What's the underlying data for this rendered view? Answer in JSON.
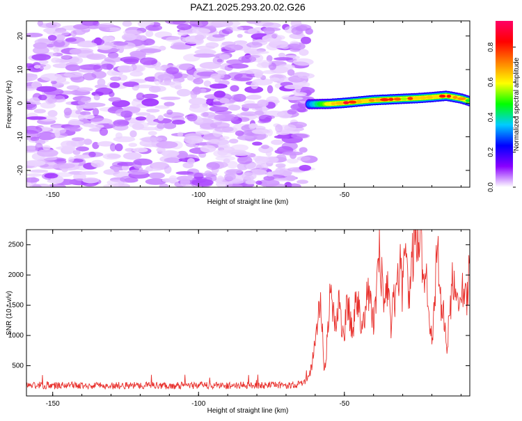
{
  "title": "PAZ1.2025.293.20.02.G26",
  "chart_data": [
    {
      "type": "heatmap",
      "xlabel": "Height of straight line (km)",
      "ylabel": "Frequency (Hz)",
      "xlim": [
        -159,
        -7
      ],
      "ylim": [
        -25,
        24.5
      ],
      "xticks": [
        -150,
        -100,
        -50
      ],
      "yticks": [
        -20,
        -10,
        0,
        10,
        20
      ],
      "colorbar": {
        "label": "Normalized spectral amplitude",
        "ticks": [
          0.0,
          0.2,
          0.4,
          0.6,
          0.8
        ],
        "tick_labels": [
          "0.0",
          "0.2",
          "0.4",
          "0.6",
          "0.8"
        ],
        "range": [
          0,
          0.95
        ],
        "colors": [
          "#ffffff",
          "#8a00ff",
          "#0000ff",
          "#00ccff",
          "#00ff00",
          "#ffff00",
          "#ff8000",
          "#ff0000",
          "#ff0066"
        ]
      },
      "noise_region": {
        "x_range": [
          -159,
          -62
        ],
        "level_range": [
          0.02,
          0.1
        ]
      },
      "signal_ridge": {
        "x": [
          -62,
          -55,
          -50,
          -45,
          -40,
          -35,
          -30,
          -25,
          -20,
          -15,
          -10,
          -7
        ],
        "frequency": [
          -0.3,
          -0.2,
          0.1,
          0.5,
          0.9,
          1.1,
          1.3,
          1.5,
          1.8,
          2.2,
          1.4,
          0.6
        ],
        "amplitude": [
          0.3,
          0.6,
          0.82,
          0.75,
          0.85,
          0.8,
          0.7,
          0.75,
          0.7,
          0.78,
          0.65,
          0.6
        ]
      }
    },
    {
      "type": "line",
      "xlabel": "Height of straight line (km)",
      "ylabel": "SNR (10 * v/v)",
      "xlim": [
        -159,
        -7
      ],
      "ylim": [
        0,
        2750
      ],
      "xticks": [
        -150,
        -100,
        -50
      ],
      "yticks": [
        500,
        1000,
        1500,
        2000,
        2500
      ],
      "color": "#e8302c",
      "series": [
        {
          "name": "SNR",
          "x": [
            -159,
            -150,
            -140,
            -130,
            -120,
            -110,
            -100,
            -90,
            -80,
            -70,
            -64,
            -62,
            -61,
            -60,
            -59,
            -58,
            -57.5,
            -57,
            -56,
            -55,
            -54.5,
            -54,
            -53,
            -52,
            -51,
            -50,
            -49,
            -48,
            -47,
            -46,
            -45,
            -44,
            -43,
            -42,
            -41,
            -40,
            -39,
            -38,
            -37,
            -36,
            -35,
            -34,
            -33,
            -32,
            -31,
            -30,
            -29,
            -28,
            -27,
            -26,
            -25,
            -24,
            -23,
            -22,
            -21,
            -20,
            -19,
            -18,
            -17,
            -16,
            -15,
            -14,
            -13,
            -12,
            -11,
            -10,
            -9,
            -8,
            -7
          ],
          "y": [
            180,
            170,
            175,
            165,
            180,
            170,
            175,
            172,
            178,
            175,
            200,
            350,
            550,
            900,
            1300,
            1600,
            1000,
            300,
            850,
            1650,
            1850,
            1500,
            1100,
            1500,
            1250,
            1000,
            1550,
            1250,
            1050,
            1700,
            1450,
            1250,
            1350,
            1750,
            1500,
            1250,
            1650,
            2300,
            1850,
            1450,
            1950,
            1150,
            1550,
            1750,
            2150,
            1700,
            2400,
            1550,
            2050,
            2750,
            2550,
            2700,
            1950,
            2150,
            1500,
            900,
            1500,
            2600,
            1550,
            1300,
            750,
            1250,
            1900,
            1650,
            1550,
            2000,
            1700,
            1550,
            2250
          ]
        }
      ]
    }
  ]
}
